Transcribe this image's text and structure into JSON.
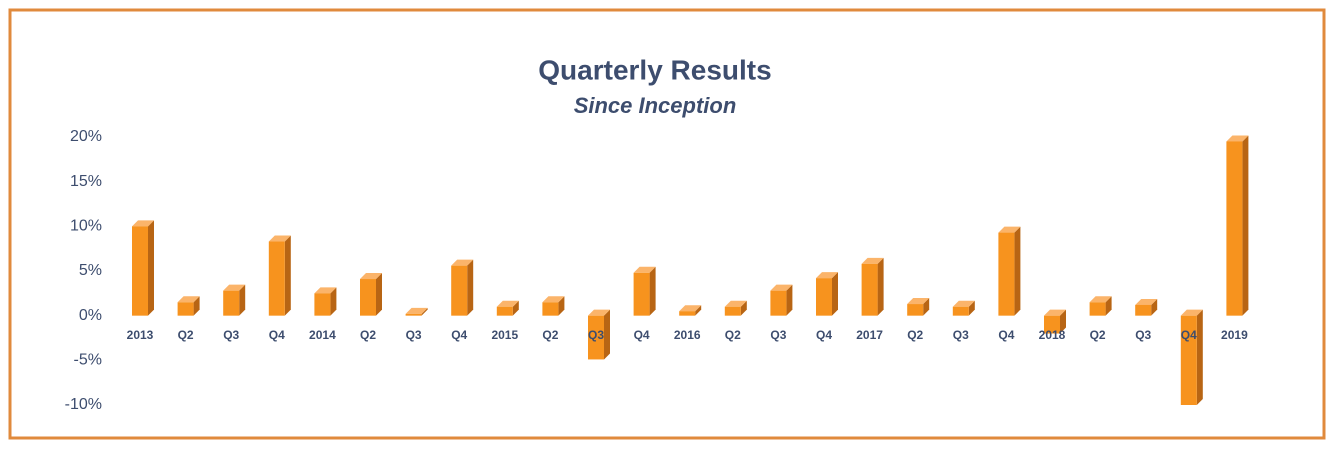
{
  "chart_data": {
    "type": "bar3d",
    "title": "Quarterly Results",
    "subtitle": "Since Inception",
    "categories": [
      "2013",
      "Q2",
      "Q3",
      "Q4",
      "2014",
      "Q2",
      "Q3",
      "Q4",
      "2015",
      "Q2",
      "Q3",
      "Q4",
      "2016",
      "Q2",
      "Q3",
      "Q4",
      "2017",
      "Q2",
      "Q3",
      "Q4",
      "2018",
      "Q2",
      "Q3",
      "Q4",
      "2019"
    ],
    "values": [
      10,
      1.5,
      2.8,
      8.3,
      2.5,
      4.1,
      0.2,
      5.6,
      1,
      1.5,
      -4.9,
      4.8,
      0.5,
      1,
      2.8,
      4.2,
      5.8,
      1.3,
      1,
      9.3,
      -2,
      1.5,
      1.2,
      -10,
      19.5
    ],
    "color": "#f7931e",
    "ylim": [
      -10,
      20
    ],
    "yticks": [
      {
        "value": -10,
        "label": "-10%"
      },
      {
        "value": -5,
        "label": "-5%"
      },
      {
        "value": 0,
        "label": "0%"
      },
      {
        "value": 5,
        "label": "5%"
      },
      {
        "value": 10,
        "label": "10%"
      },
      {
        "value": 15,
        "label": "15%"
      },
      {
        "value": 20,
        "label": "20%"
      }
    ],
    "grid": false
  }
}
